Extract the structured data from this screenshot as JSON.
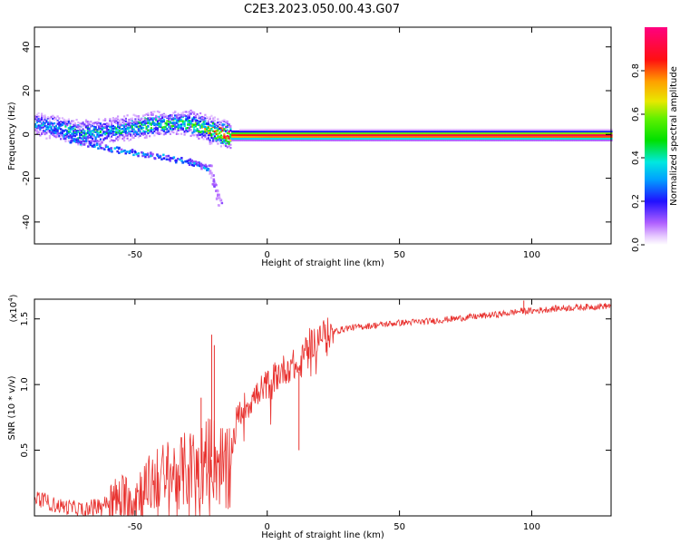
{
  "title": "C2E3.2023.050.00.43.G07",
  "chart_data": [
    {
      "type": "heatmap",
      "xlabel": "Height of straight line (km)",
      "ylabel": "Frequency (Hz)",
      "xlim": [
        -88,
        130
      ],
      "ylim": [
        -50,
        49
      ],
      "xticks": [
        -50,
        0,
        50,
        100
      ],
      "yticks": [
        -40,
        -20,
        0,
        20,
        40
      ],
      "colorbar": {
        "label": "Normalized spectral amplitude",
        "range": [
          0,
          1
        ],
        "ticks": [
          0.0,
          0.2,
          0.4,
          0.6,
          0.8
        ],
        "tick_labels": [
          "0.0",
          "0.2",
          "0.4",
          "0.6",
          "0.8"
        ]
      },
      "ridge": {
        "description_points": [
          {
            "x": -86,
            "y": 5,
            "amp": 0.3
          },
          {
            "x": -70,
            "y": 1,
            "amp": 0.4
          },
          {
            "x": -55,
            "y": 3,
            "amp": 0.35
          },
          {
            "x": -45,
            "y": 5,
            "amp": 0.45
          },
          {
            "x": -30,
            "y": 6,
            "amp": 0.4
          },
          {
            "x": -20,
            "y": 2,
            "amp": 0.7
          },
          {
            "x": -15,
            "y": 0,
            "amp": 0.85
          },
          {
            "x": 0,
            "y": 0,
            "amp": 0.9
          },
          {
            "x": 130,
            "y": 0,
            "amp": 0.95
          }
        ],
        "lower_branch": [
          {
            "x": -75,
            "y": -2
          },
          {
            "x": -60,
            "y": -6
          },
          {
            "x": -45,
            "y": -9
          },
          {
            "x": -30,
            "y": -12
          },
          {
            "x": -22,
            "y": -15
          },
          {
            "x": -18,
            "y": -32
          }
        ]
      }
    },
    {
      "type": "line",
      "xlabel": "Height of straight line (km)",
      "ylabel": "SNR (10 * v/v)",
      "yscale_label": "(x10",
      "yscale_exp": "4",
      "yscale_close": ")",
      "xlim": [
        -88,
        130
      ],
      "ylim": [
        0,
        1.65
      ],
      "xticks": [
        -50,
        0,
        50,
        100
      ],
      "yticks": [
        0.5,
        1.0,
        1.5
      ],
      "ytick_labels": [
        "0.5",
        "1.0",
        "1.5"
      ],
      "color": "#e8312e",
      "series": [
        {
          "values_description": "noisy SNR profile (x10^4)",
          "x": [
            -88,
            -80,
            -70,
            -60,
            -50,
            -40,
            -30,
            -25,
            -21,
            -18,
            -15,
            -12,
            -10,
            -5,
            0,
            5,
            10,
            12,
            15,
            18,
            20,
            25,
            30,
            40,
            50,
            60,
            70,
            80,
            90,
            96,
            100,
            110,
            120,
            130
          ],
          "y": [
            0.15,
            0.08,
            0.05,
            0.1,
            0.15,
            0.3,
            0.35,
            0.4,
            0.45,
            0.4,
            0.3,
            0.7,
            0.8,
            0.9,
            1.0,
            1.1,
            1.15,
            1.1,
            1.3,
            1.33,
            1.38,
            1.4,
            1.43,
            1.45,
            1.47,
            1.48,
            1.5,
            1.52,
            1.54,
            1.56,
            1.56,
            1.58,
            1.59,
            1.6
          ]
        }
      ],
      "spikes": [
        {
          "x": -21,
          "y": 1.38
        },
        {
          "x": -20,
          "y": 1.3
        },
        {
          "x": -25,
          "y": 0.9
        },
        {
          "x": 12,
          "y": 0.5
        },
        {
          "x": 97,
          "y": 1.64
        }
      ]
    }
  ]
}
